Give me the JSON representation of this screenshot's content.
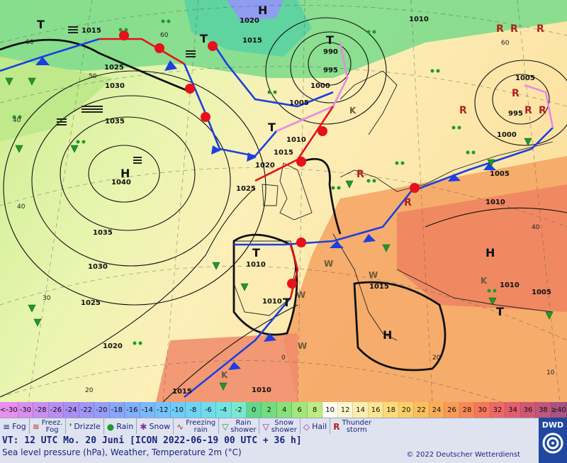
{
  "map": {
    "isobar_labels": [
      {
        "text": "1015"
      },
      {
        "text": "1020"
      },
      {
        "text": "1015"
      },
      {
        "text": "1010"
      },
      {
        "text": "990"
      },
      {
        "text": "995"
      },
      {
        "text": "1000"
      },
      {
        "text": "1005"
      },
      {
        "text": "1025"
      },
      {
        "text": "1030"
      },
      {
        "text": "1035"
      },
      {
        "text": "1040"
      },
      {
        "text": "1010"
      },
      {
        "text": "1015"
      },
      {
        "text": "1020"
      },
      {
        "text": "1025"
      },
      {
        "text": "1035"
      },
      {
        "text": "1030"
      },
      {
        "text": "1025"
      },
      {
        "text": "1020"
      },
      {
        "text": "1010"
      },
      {
        "text": "1010"
      },
      {
        "text": "1015"
      },
      {
        "text": "1005"
      },
      {
        "text": "1010"
      },
      {
        "text": "1000"
      },
      {
        "text": "1005"
      },
      {
        "text": "995"
      },
      {
        "text": "1010"
      },
      {
        "text": "1005"
      },
      {
        "text": "1010"
      },
      {
        "text": "1015"
      },
      {
        "text": "1010"
      }
    ],
    "grid_labels": [
      "60",
      "50",
      "60",
      "40",
      "40",
      "30",
      "20",
      "30",
      "40",
      "60",
      "20",
      "0",
      "10"
    ],
    "pressure_centers": [
      {
        "type": "H"
      },
      {
        "type": "T"
      },
      {
        "type": "T"
      },
      {
        "type": "T"
      },
      {
        "type": "H"
      },
      {
        "type": "T"
      },
      {
        "type": "T"
      },
      {
        "type": "H"
      },
      {
        "type": "H"
      },
      {
        "type": "T"
      },
      {
        "type": "T"
      }
    ],
    "weather_letters": [
      "W",
      "W",
      "W",
      "W",
      "K",
      "K",
      "K"
    ]
  },
  "scale": {
    "unit": "°C",
    "steps": [
      {
        "label": "<-30",
        "color": "#e98ff0"
      },
      {
        "label": "-30",
        "color": "#d88ef0"
      },
      {
        "label": "-28",
        "color": "#c98ef0"
      },
      {
        "label": "-26",
        "color": "#b98ef2"
      },
      {
        "label": "-24",
        "color": "#a98ef5"
      },
      {
        "label": "-22",
        "color": "#9f97f7"
      },
      {
        "label": "-20",
        "color": "#959ff9"
      },
      {
        "label": "-18",
        "color": "#8aa6fb"
      },
      {
        "label": "-16",
        "color": "#80affc"
      },
      {
        "label": "-14",
        "color": "#7ab8fc"
      },
      {
        "label": "-12",
        "color": "#74c2fb"
      },
      {
        "label": "-10",
        "color": "#6fcbf8"
      },
      {
        "label": "-8",
        "color": "#6cd4f2"
      },
      {
        "label": "-6",
        "color": "#6edceb"
      },
      {
        "label": "-4",
        "color": "#72e3e0"
      },
      {
        "label": "-2",
        "color": "#7ae8cf"
      },
      {
        "label": "0",
        "color": "#62d68a"
      },
      {
        "label": "2",
        "color": "#72dc7f"
      },
      {
        "label": "4",
        "color": "#88e07a"
      },
      {
        "label": "6",
        "color": "#a2e67c"
      },
      {
        "label": "8",
        "color": "#bdec84"
      },
      {
        "label": "10",
        "color": "#fffef0"
      },
      {
        "label": "12",
        "color": "#fdf6cf"
      },
      {
        "label": "14",
        "color": "#fdeeb0"
      },
      {
        "label": "16",
        "color": "#fde692"
      },
      {
        "label": "18",
        "color": "#fddb7a"
      },
      {
        "label": "20",
        "color": "#fcce68"
      },
      {
        "label": "22",
        "color": "#fcbe5e"
      },
      {
        "label": "24",
        "color": "#fbac58"
      },
      {
        "label": "26",
        "color": "#f99a56"
      },
      {
        "label": "28",
        "color": "#f78857"
      },
      {
        "label": "30",
        "color": "#f4775c"
      },
      {
        "label": "32",
        "color": "#ee6865"
      },
      {
        "label": "34",
        "color": "#e25d6e"
      },
      {
        "label": "36",
        "color": "#d15875"
      },
      {
        "label": "38",
        "color": "#bf567c"
      },
      {
        "label": "≥40",
        "color": "#a85380"
      }
    ]
  },
  "legend": {
    "fog": "Fog",
    "freezing_fog_1": "Freez.",
    "freezing_fog_2": "Fog",
    "drizzle": "Drizzle",
    "rain": "Rain",
    "snow": "Snow",
    "freezing_rain_1": "Freezing",
    "freezing_rain_2": "rain",
    "rain_shower_1": "Rain",
    "rain_shower_2": "shower",
    "snow_shower_1": "Snow",
    "snow_shower_2": "shower",
    "hail": "Hail",
    "thunderstorm_1": "Thunder",
    "thunderstorm_2": "storm"
  },
  "info": {
    "valid_time": "VT: 12 UTC Mo.  20 Juni [ICON 2022-06-19  00 UTC + 36 h]",
    "description": "Sea level pressure (hPa), Weather, Temperature 2m (°C)",
    "copyright": "© 2022 Deutscher Wetterdienst",
    "logo": "DWD"
  },
  "colors": {
    "warm_front": "#e8101a",
    "cold_front": "#1b3fe0",
    "occluded_front": "#e68ae6",
    "isobar": "#111111",
    "label_blue": "#1a237e"
  }
}
